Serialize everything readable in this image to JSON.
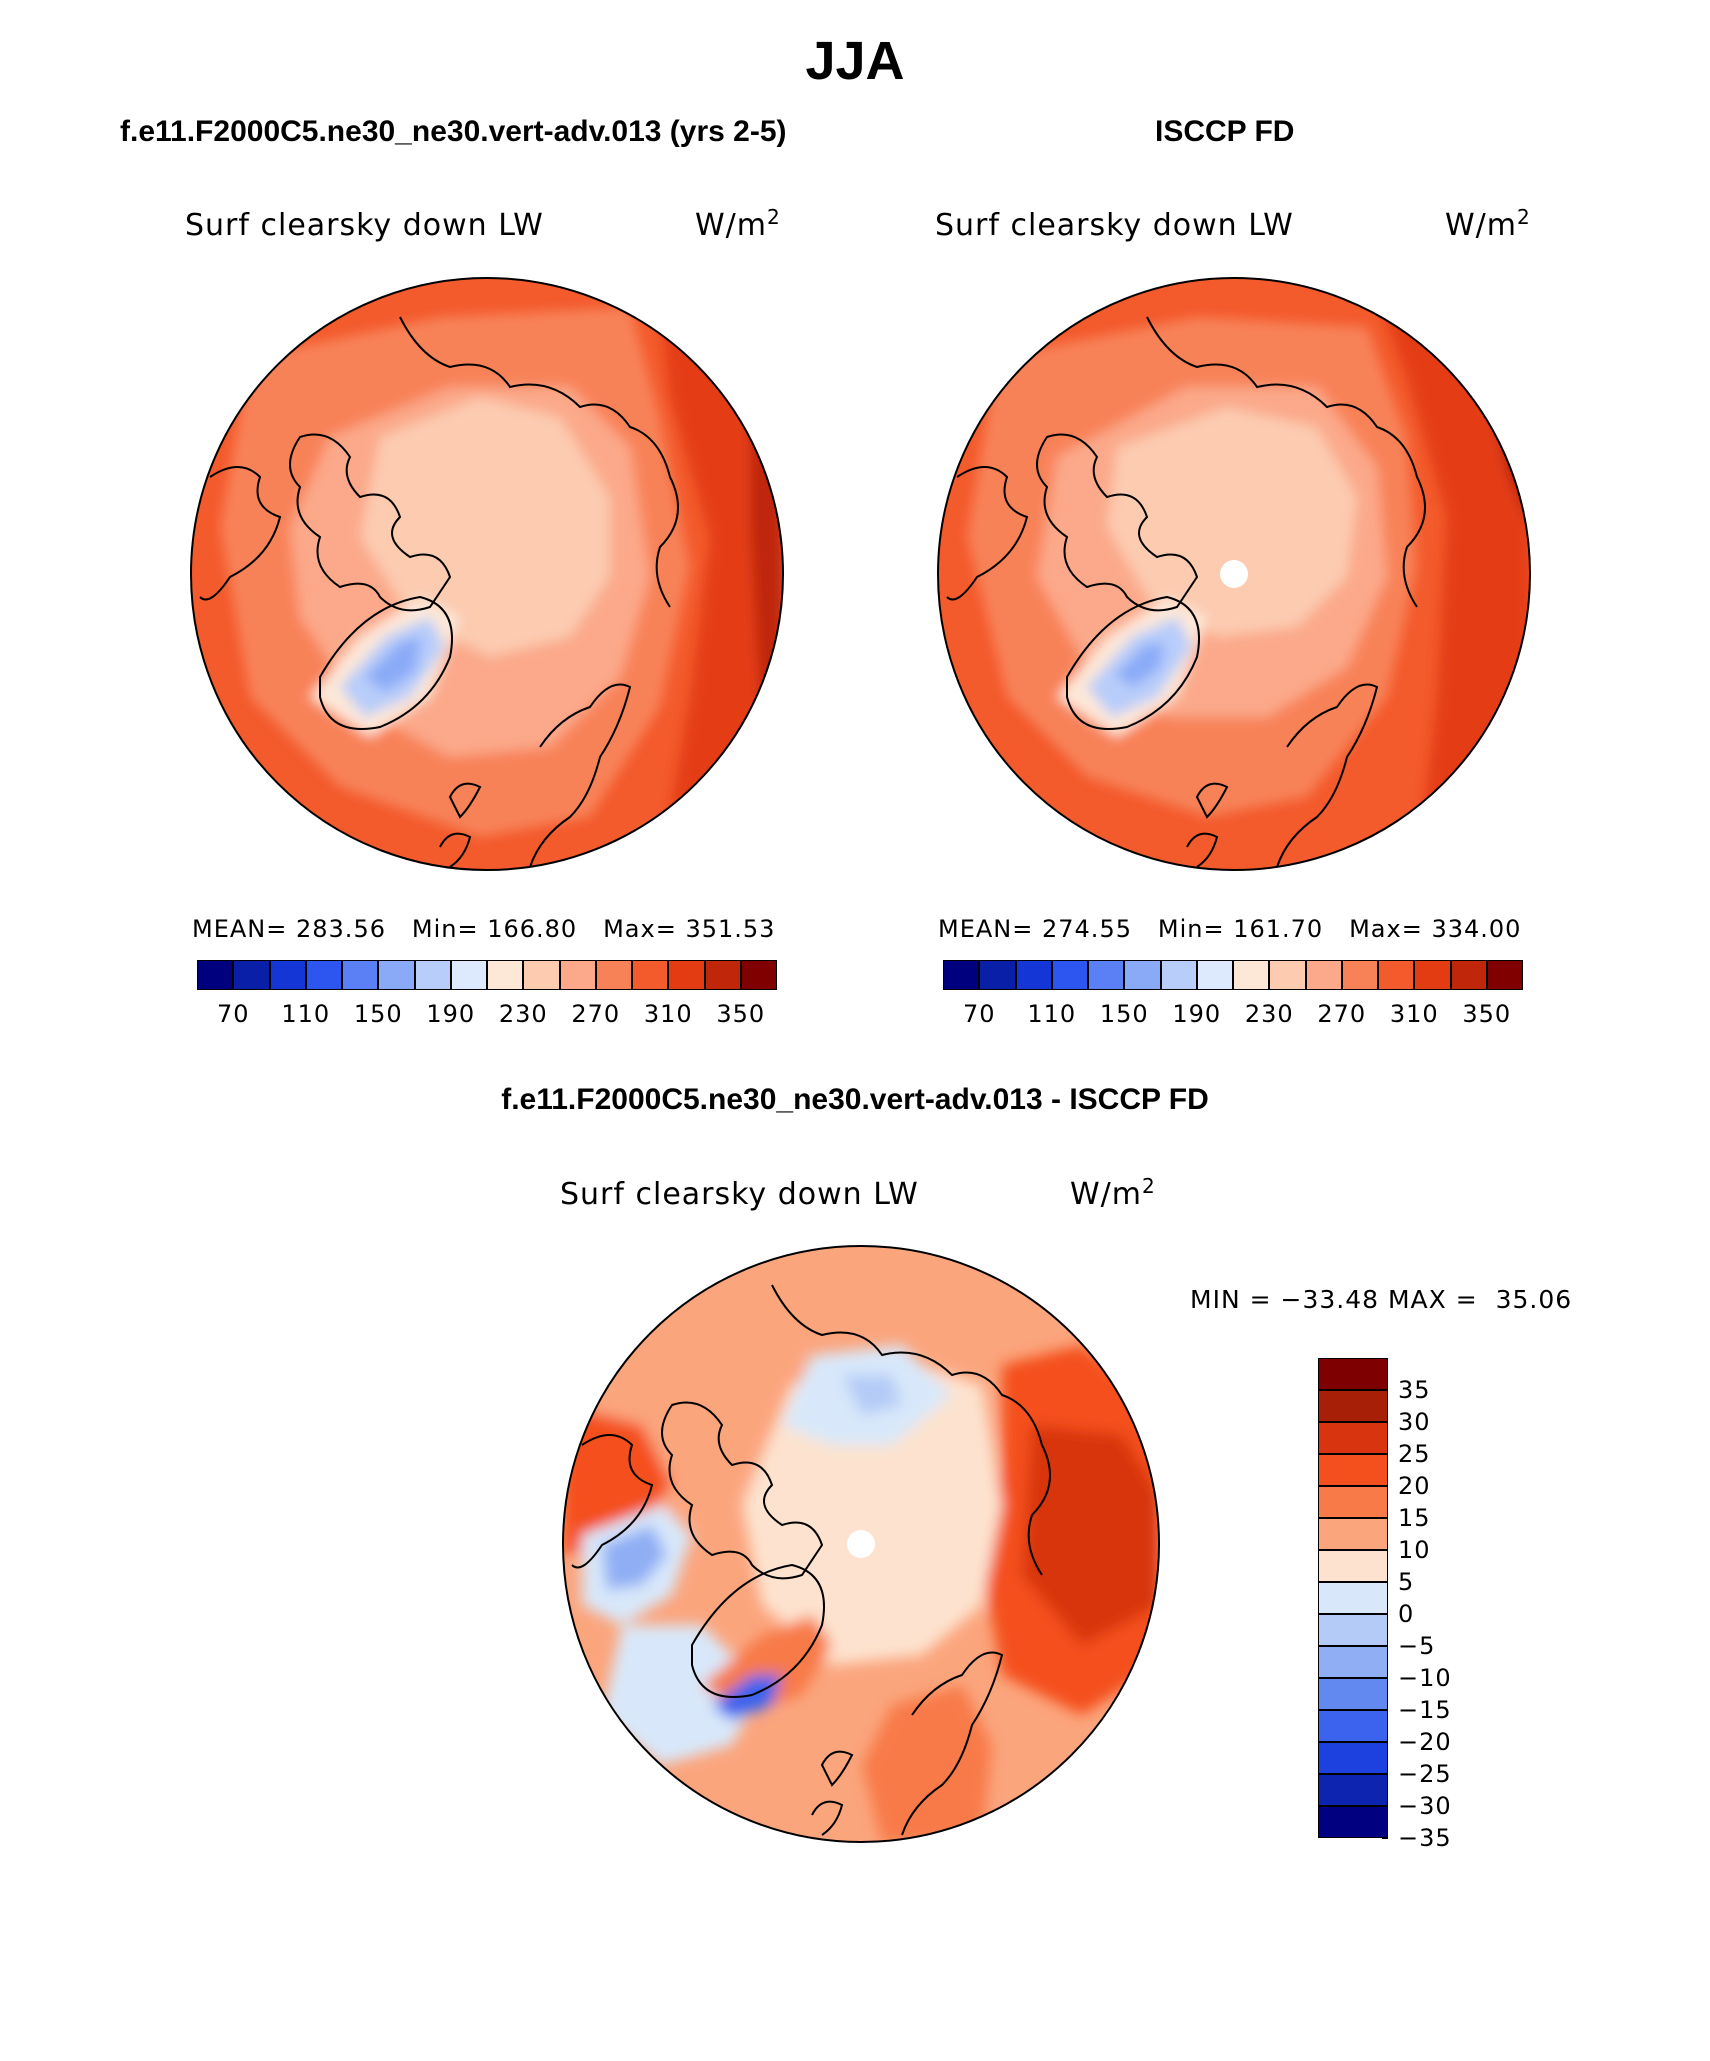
{
  "title": "JJA",
  "panels": [
    {
      "title": "f.e11.F2000C5.ne30_ne30.vert-adv.013 (yrs 2-5)",
      "variable": "Surf clearsky down LW",
      "units_base": "W/m",
      "units_exp": "2",
      "stats": {
        "mean_label": "MEAN=",
        "mean": "283.56",
        "min_label": "Min=",
        "min": "166.80",
        "max_label": "Max=",
        "max": "351.53"
      },
      "has_pole_hole": false
    },
    {
      "title": "ISCCP FD",
      "variable": "Surf clearsky down LW",
      "units_base": "W/m",
      "units_exp": "2",
      "stats": {
        "mean_label": "MEAN=",
        "mean": "274.55",
        "min_label": "Min=",
        "min": "161.70",
        "max_label": "Max=",
        "max": "334.00"
      },
      "has_pole_hole": true
    }
  ],
  "diff_panel": {
    "title": "f.e11.F2000C5.ne30_ne30.vert-adv.013 - ISCCP FD",
    "variable": "Surf clearsky down LW",
    "units_base": "W/m",
    "units_exp": "2",
    "min_label": "MIN =",
    "min": "−33.48",
    "max_label": "MAX =",
    "max": "35.06"
  },
  "colorbar_main": {
    "colors": [
      "#00007f",
      "#0a1fa8",
      "#1536d6",
      "#2d56f0",
      "#5b80f5",
      "#8aaaf7",
      "#b8cdfa",
      "#dde9fc",
      "#fde8d8",
      "#fccbb0",
      "#fba98a",
      "#f88258",
      "#f35a2c",
      "#e43c12",
      "#bf260a",
      "#800000"
    ],
    "tick_labels": [
      "70",
      "110",
      "150",
      "190",
      "230",
      "270",
      "310",
      "350"
    ]
  },
  "colorbar_diff": {
    "colors": [
      "#7f0000",
      "#a81f08",
      "#d83410",
      "#f4501e",
      "#f87a48",
      "#fba57d",
      "#fde3cf",
      "#d8e8fa",
      "#b4cbf7",
      "#8faef4",
      "#6289f0",
      "#3b63ee",
      "#1c41df",
      "#0c24b0",
      "#000080"
    ],
    "tick_labels": [
      "35",
      "30",
      "25",
      "20",
      "15",
      "10",
      "5",
      "0",
      "−5",
      "−10",
      "−15",
      "−20",
      "−25",
      "−30",
      "−35"
    ]
  }
}
